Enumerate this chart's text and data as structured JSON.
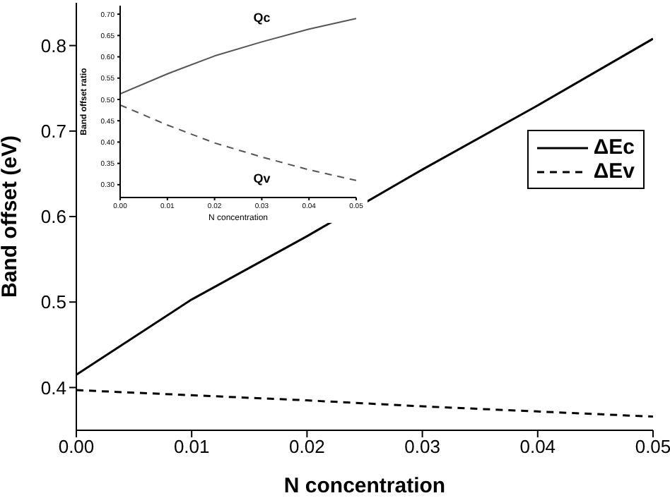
{
  "chart_data": [
    {
      "type": "line",
      "xlabel": "N concentration",
      "ylabel": "Band offset (eV)",
      "x": [
        0,
        0.01,
        0.02,
        0.03,
        0.04,
        0.05
      ],
      "series": [
        {
          "name": "ΔEc",
          "color": "#000000",
          "line_style": "solid",
          "values": [
            0.415,
            0.503,
            0.577,
            0.655,
            0.73,
            0.808
          ]
        },
        {
          "name": "ΔEv",
          "color": "#000000",
          "line_style": "dashed",
          "values": [
            0.397,
            0.391,
            0.385,
            0.378,
            0.372,
            0.366
          ]
        }
      ],
      "xlim": [
        0,
        0.05
      ],
      "xticks": [
        {
          "value": 0,
          "label": "0.00"
        },
        {
          "value": 0.01,
          "label": "0.01"
        },
        {
          "value": 0.02,
          "label": "0.02"
        },
        {
          "value": 0.03,
          "label": "0.03"
        },
        {
          "value": 0.04,
          "label": "0.04"
        },
        {
          "value": 0.05,
          "label": "0.05"
        }
      ],
      "ylim": [
        0.35,
        0.85
      ],
      "yticks": [
        0.4,
        0.5,
        0.6,
        0.7,
        0.8
      ],
      "grid": false,
      "legend": "right",
      "marker": "none"
    },
    {
      "type": "line",
      "xlabel": "N concentration",
      "ylabel": "Band offset ratio",
      "x": [
        0,
        0.01,
        0.02,
        0.03,
        0.04,
        0.05
      ],
      "series": [
        {
          "name": "Qc",
          "color": "#555555",
          "line_style": "solid",
          "values": [
            0.513,
            0.56,
            0.602,
            0.635,
            0.665,
            0.69
          ]
        },
        {
          "name": "Qv",
          "color": "#555555",
          "line_style": "dashed",
          "values": [
            0.487,
            0.44,
            0.398,
            0.365,
            0.335,
            0.31
          ]
        }
      ],
      "xlim": [
        0,
        0.05
      ],
      "xticks": [
        {
          "value": 0,
          "label": "0.00"
        },
        {
          "value": 0.01,
          "label": "0.01"
        },
        {
          "value": 0.02,
          "label": "0.02"
        },
        {
          "value": 0.03,
          "label": "0.03"
        },
        {
          "value": 0.04,
          "label": "0.04"
        },
        {
          "value": 0.05,
          "label": "0.05"
        }
      ],
      "ylim": [
        0.27,
        0.72
      ],
      "yticks": [
        {
          "value": 0.3,
          "label": "0.30"
        },
        {
          "value": 0.35,
          "label": "0.35"
        },
        {
          "value": 0.4,
          "label": "0.40"
        },
        {
          "value": 0.45,
          "label": "0.45"
        },
        {
          "value": 0.5,
          "label": "0.50"
        },
        {
          "value": 0.55,
          "label": "0.55"
        },
        {
          "value": 0.6,
          "label": "0.60"
        },
        {
          "value": 0.65,
          "label": "0.65"
        },
        {
          "value": 0.7,
          "label": "0.70"
        }
      ],
      "grid": false,
      "legend": false,
      "marker": "none"
    }
  ]
}
